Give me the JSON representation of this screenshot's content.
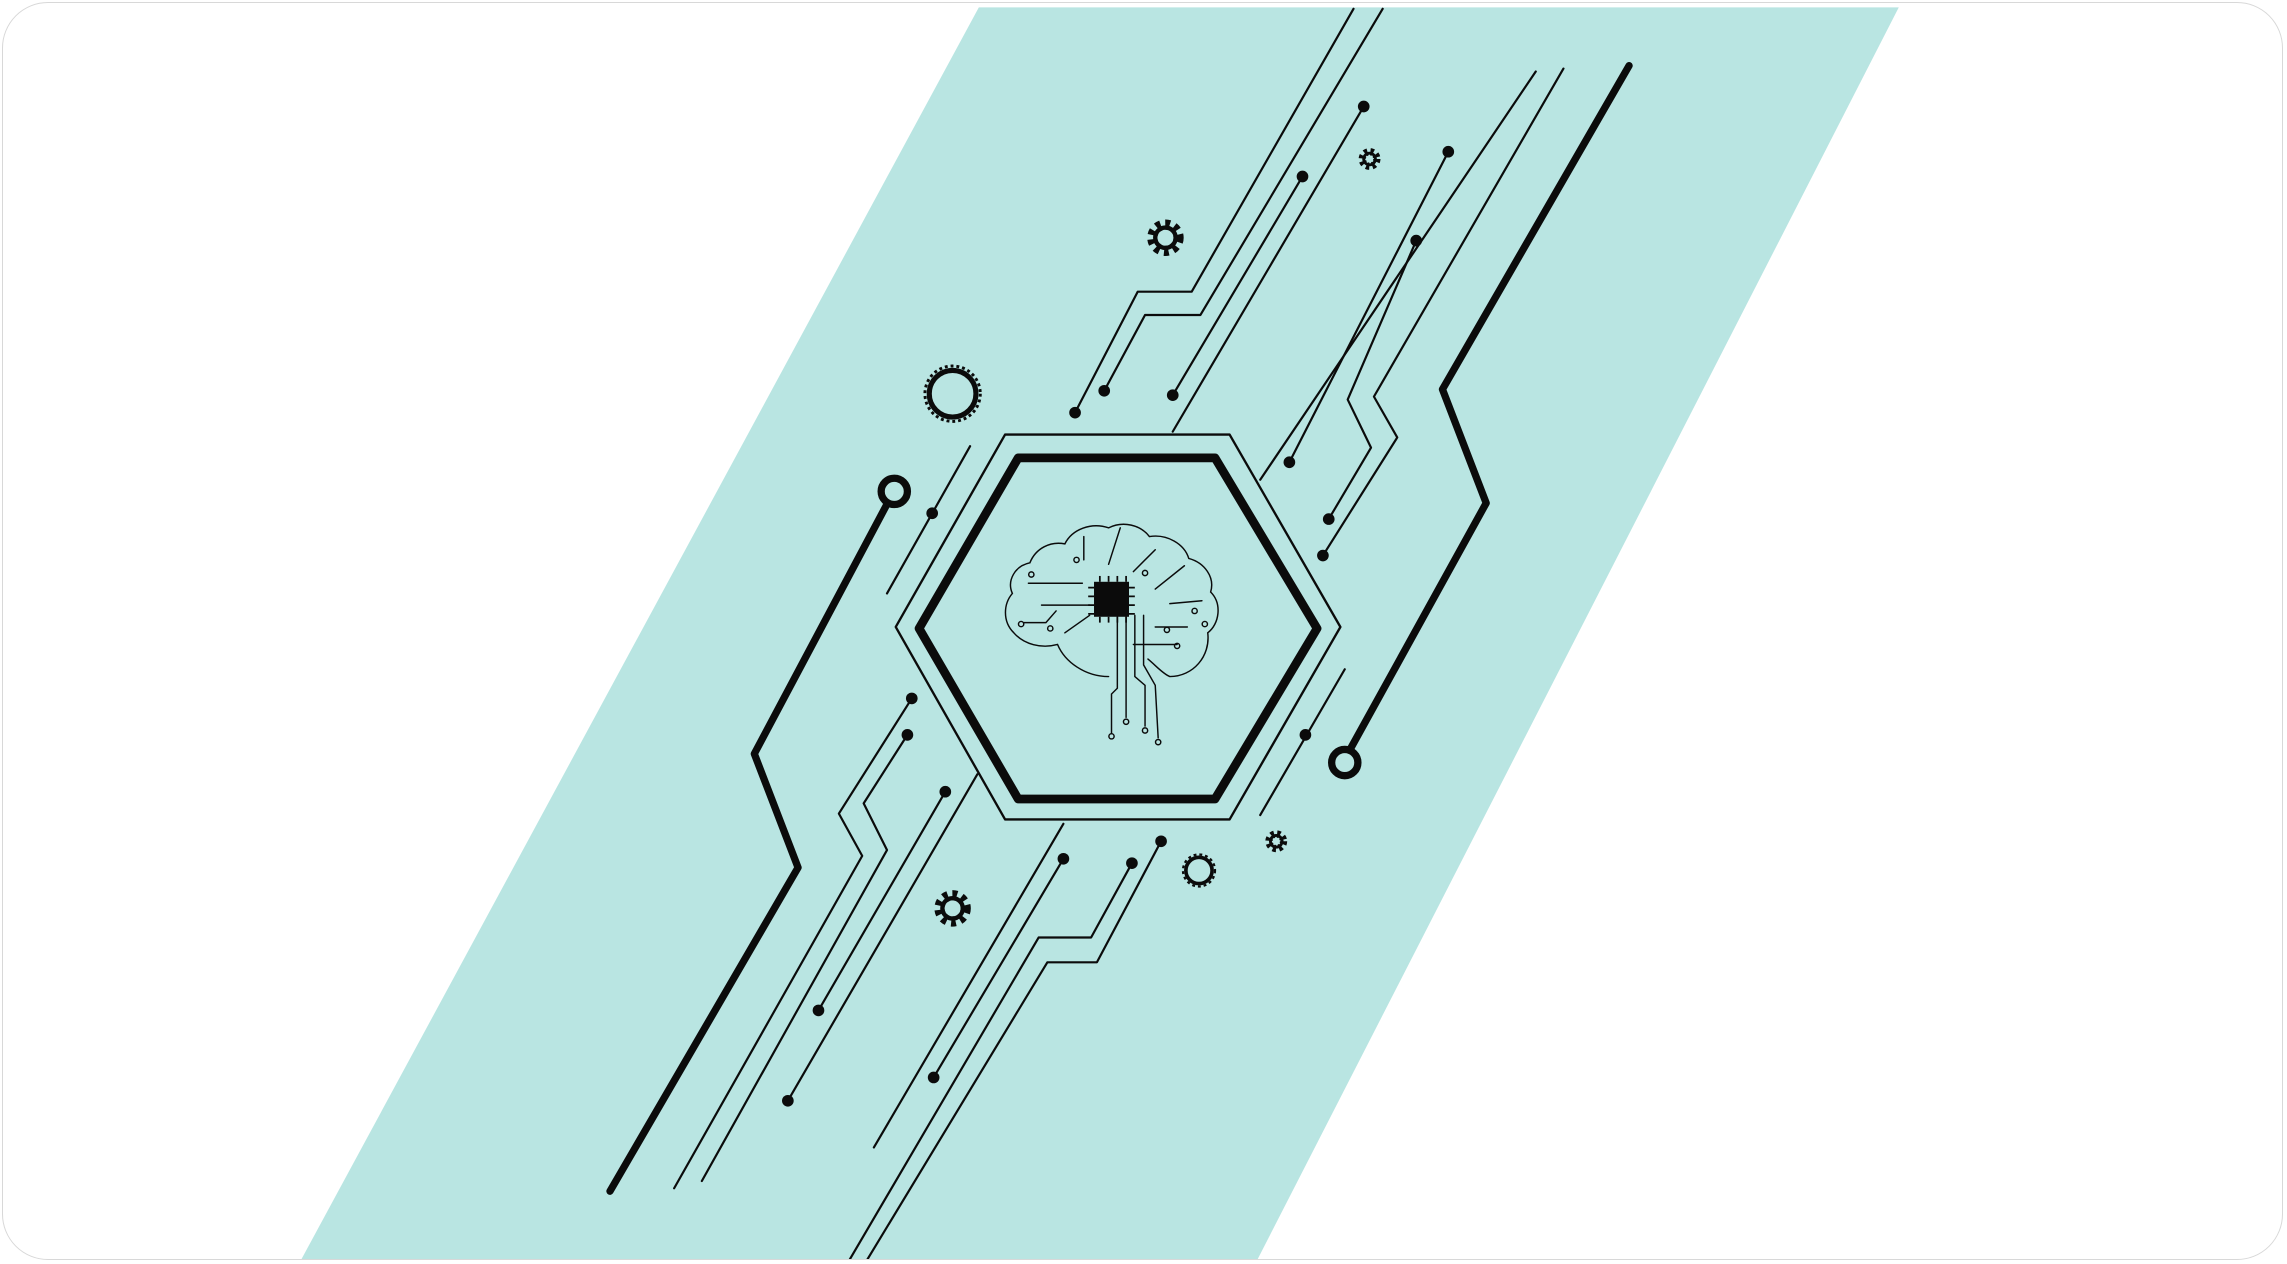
{
  "illustration": {
    "subject": "brain-circuit-hexagon",
    "colors": {
      "band": "#b9e5e2",
      "ink": "#0b0b0b",
      "background": "#ffffff",
      "card_border": "#d8d8d8"
    },
    "icons": [
      "brain-icon",
      "chip-icon",
      "gear-icon",
      "ring-icon"
    ]
  }
}
